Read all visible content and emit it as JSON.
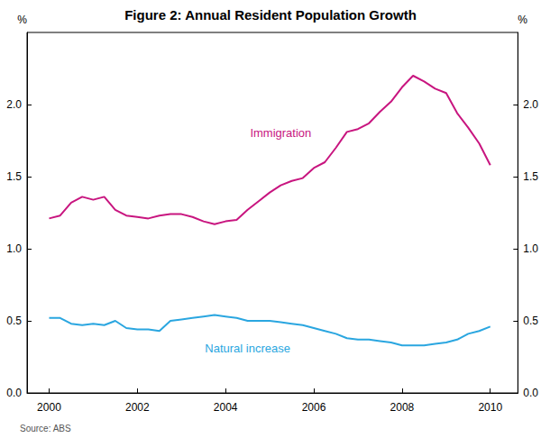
{
  "chart_data": {
    "type": "line",
    "title": "Figure 2: Annual Resident Population Growth",
    "y_label": "%",
    "source": "Source: ABS",
    "x": [
      2000,
      2000.25,
      2000.5,
      2000.75,
      2001,
      2001.25,
      2001.5,
      2001.75,
      2002,
      2002.25,
      2002.5,
      2002.75,
      2003,
      2003.25,
      2003.5,
      2003.75,
      2004,
      2004.25,
      2004.5,
      2004.75,
      2005,
      2005.25,
      2005.5,
      2005.75,
      2006,
      2006.25,
      2006.5,
      2006.75,
      2007,
      2007.25,
      2007.5,
      2007.75,
      2008,
      2008.25,
      2008.5,
      2008.75,
      2009,
      2009.25,
      2009.5,
      2009.75,
      2010
    ],
    "series": [
      {
        "name": "Immigration",
        "color": "#c8157f",
        "values": [
          1.21,
          1.23,
          1.32,
          1.36,
          1.34,
          1.36,
          1.27,
          1.23,
          1.22,
          1.21,
          1.23,
          1.24,
          1.24,
          1.22,
          1.19,
          1.17,
          1.19,
          1.2,
          1.27,
          1.33,
          1.39,
          1.44,
          1.47,
          1.49,
          1.56,
          1.6,
          1.7,
          1.81,
          1.83,
          1.87,
          1.95,
          2.02,
          2.12,
          2.2,
          2.16,
          2.11,
          2.08,
          1.94,
          1.84,
          1.73,
          1.58
        ]
      },
      {
        "name": "Natural increase",
        "color": "#2aa6e0",
        "values": [
          0.52,
          0.52,
          0.48,
          0.47,
          0.48,
          0.47,
          0.5,
          0.45,
          0.44,
          0.44,
          0.43,
          0.5,
          0.51,
          0.52,
          0.53,
          0.54,
          0.53,
          0.52,
          0.5,
          0.5,
          0.5,
          0.49,
          0.48,
          0.47,
          0.45,
          0.43,
          0.41,
          0.38,
          0.37,
          0.37,
          0.36,
          0.35,
          0.33,
          0.33,
          0.33,
          0.34,
          0.35,
          0.37,
          0.41,
          0.43,
          0.46
        ]
      }
    ],
    "xlim": [
      1999.5,
      2010.625
    ],
    "xticks": [
      2000,
      2002,
      2004,
      2006,
      2008,
      2010
    ],
    "ylim": [
      0,
      2.5
    ],
    "yticks": [
      {
        "value": 0,
        "label": "0.0"
      },
      0.5,
      {
        "value": 1,
        "label": "1.0"
      },
      1.5,
      {
        "value": 2,
        "label": "2.0"
      }
    ],
    "grid": false
  }
}
